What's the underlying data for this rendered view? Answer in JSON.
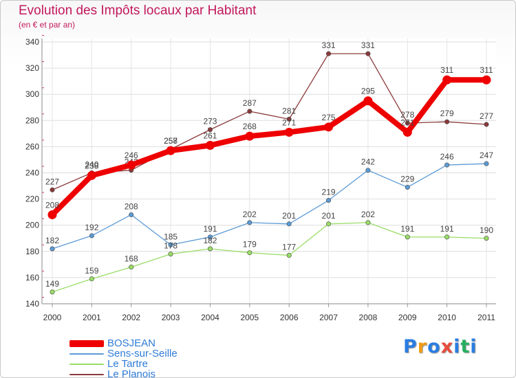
{
  "title": "Evolution des Impôts locaux par Habitant",
  "subtitle": "(en € et par an)",
  "brand": {
    "letters": [
      "P",
      "r",
      "o",
      "x",
      "i",
      "t",
      "i"
    ],
    "colors": [
      "#2a7de1",
      "#f39c12",
      "#2a7de1",
      "#e74c3c",
      "#2a7de1",
      "#27ae60",
      "#2a7de1"
    ]
  },
  "chart_data": {
    "type": "line",
    "categories": [
      "2000",
      "2001",
      "2002",
      "2003",
      "2004",
      "2005",
      "2006",
      "2007",
      "2008",
      "2009",
      "2010",
      "2011"
    ],
    "ylim": [
      140,
      340
    ],
    "yticks": [
      "140",
      "160",
      "180",
      "200",
      "220",
      "240",
      "260",
      "280",
      "300",
      "320",
      "340"
    ],
    "grid": true,
    "series": [
      {
        "name": "BOSJEAN",
        "color": "#ee0000",
        "thick": true,
        "values": [
          208,
          238,
          246,
          257,
          261,
          268,
          271,
          275,
          295,
          271,
          311,
          311
        ]
      },
      {
        "name": "Sens-sur-Seille",
        "color": "#5b9bd5",
        "thick": false,
        "values": [
          182,
          192,
          208,
          185,
          191,
          202,
          201,
          219,
          242,
          229,
          246,
          247
        ]
      },
      {
        "name": "Le Tartre",
        "color": "#99dd66",
        "thick": false,
        "values": [
          149,
          159,
          168,
          178,
          182,
          179,
          177,
          201,
          202,
          191,
          191,
          190
        ]
      },
      {
        "name": "Le Planois",
        "color": "#8b3a3a",
        "thick": false,
        "values": [
          227,
          240,
          242,
          258,
          273,
          287,
          281,
          331,
          331,
          278,
          279,
          277
        ]
      }
    ]
  }
}
